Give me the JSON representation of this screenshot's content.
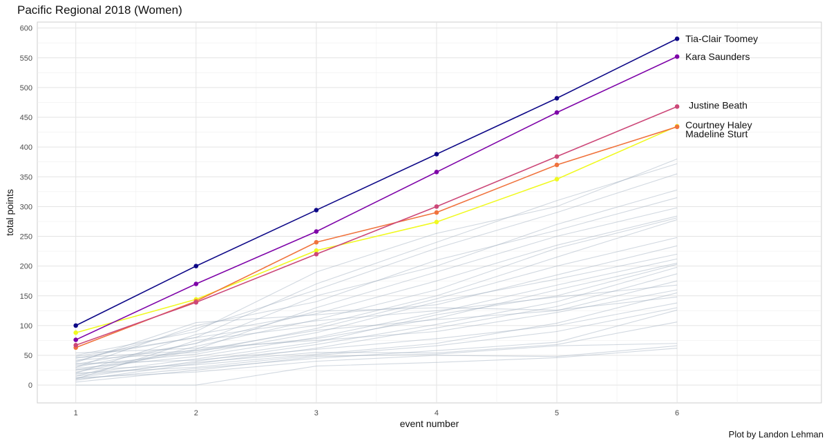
{
  "caption": "Plot by Landon Lehman",
  "chart_data": {
    "type": "line",
    "title": "Pacific Regional 2018 (Women)",
    "xlabel": "event number",
    "ylabel": "total points",
    "x": [
      1,
      2,
      3,
      4,
      5,
      6
    ],
    "xlim": [
      0.68,
      7.2
    ],
    "ylim": [
      -30,
      610
    ],
    "x_ticks": [
      1,
      2,
      3,
      4,
      5,
      6
    ],
    "y_ticks": [
      0,
      50,
      100,
      150,
      200,
      250,
      300,
      350,
      400,
      450,
      500,
      550,
      600
    ],
    "grid": true,
    "background_series_color": "#9aa9bb",
    "highlighted_series": [
      {
        "name": "Tia-Clair Toomey",
        "color": "#0d0887",
        "values": [
          100,
          200,
          294,
          388,
          482,
          582
        ]
      },
      {
        "name": "Kara Saunders",
        "color": "#7e03a8",
        "values": [
          76,
          170,
          258,
          358,
          458,
          552
        ]
      },
      {
        "name": "Justine Beath",
        "color": "#cc4778",
        "values": [
          67,
          139,
          220,
          300,
          384,
          468
        ]
      },
      {
        "name": "Courtney Haley",
        "color": "#f0733d",
        "values": [
          63,
          141,
          240,
          290,
          370,
          434
        ]
      },
      {
        "name": "Madeline Sturt",
        "color": "#f0f921",
        "values": [
          88,
          144,
          226,
          274,
          346,
          435
        ]
      }
    ],
    "background_series": [
      [
        50,
        90,
        190,
        255,
        300,
        380
      ],
      [
        45,
        80,
        170,
        240,
        310,
        372
      ],
      [
        40,
        95,
        160,
        230,
        290,
        355
      ],
      [
        35,
        70,
        150,
        200,
        270,
        328
      ],
      [
        30,
        100,
        140,
        210,
        260,
        315
      ],
      [
        25,
        60,
        130,
        190,
        250,
        298
      ],
      [
        20,
        85,
        120,
        175,
        235,
        284
      ],
      [
        15,
        65,
        110,
        160,
        230,
        281
      ],
      [
        10,
        75,
        100,
        150,
        215,
        278
      ],
      [
        42,
        55,
        95,
        145,
        200,
        248
      ],
      [
        38,
        105,
        118,
        135,
        185,
        234
      ],
      [
        33,
        52,
        88,
        140,
        178,
        220
      ],
      [
        28,
        48,
        80,
        122,
        168,
        212
      ],
      [
        22,
        58,
        78,
        112,
        160,
        205
      ],
      [
        18,
        44,
        72,
        118,
        150,
        203
      ],
      [
        12,
        40,
        68,
        102,
        140,
        198
      ],
      [
        8,
        36,
        62,
        96,
        132,
        187
      ],
      [
        46,
        58,
        92,
        110,
        125,
        175
      ],
      [
        48,
        80,
        108,
        125,
        148,
        168
      ],
      [
        54,
        62,
        75,
        90,
        122,
        160
      ],
      [
        26,
        34,
        52,
        70,
        104,
        155
      ],
      [
        30,
        70,
        124,
        130,
        126,
        148
      ],
      [
        36,
        42,
        60,
        78,
        100,
        138
      ],
      [
        20,
        30,
        50,
        66,
        90,
        130
      ],
      [
        10,
        28,
        45,
        58,
        72,
        126
      ],
      [
        15,
        38,
        55,
        54,
        68,
        106
      ],
      [
        5,
        25,
        48,
        52,
        66,
        70
      ],
      [
        12,
        22,
        40,
        50,
        48,
        66
      ],
      [
        0,
        0,
        32,
        38,
        46,
        62
      ]
    ]
  }
}
